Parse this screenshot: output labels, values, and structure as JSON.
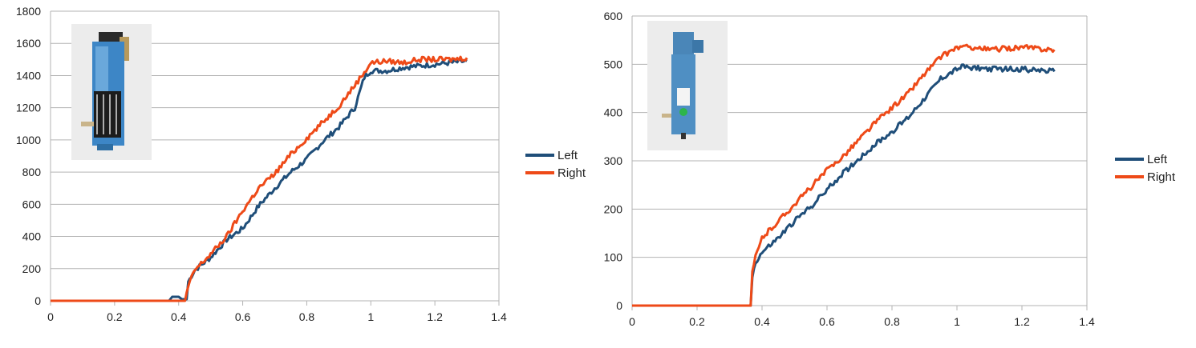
{
  "chart_data": [
    {
      "type": "line",
      "xlim": [
        0,
        1.4
      ],
      "ylim": [
        0,
        1800
      ],
      "x_ticks": [
        "0",
        "0.2",
        "0.4",
        "0.6",
        "0.8",
        "1",
        "1.2",
        "1.4"
      ],
      "y_ticks": [
        "0",
        "200",
        "400",
        "600",
        "800",
        "1000",
        "1200",
        "1400",
        "1600",
        "1800"
      ],
      "grid": true,
      "legend_position": "right",
      "inset_image": "photo of blue gear motor (labeled TM310)",
      "series": [
        {
          "name": "Left",
          "color": "#1f4e79",
          "points": [
            [
              0,
              0
            ],
            [
              0.37,
              0
            ],
            [
              0.38,
              25
            ],
            [
              0.4,
              25
            ],
            [
              0.41,
              10
            ],
            [
              0.425,
              10
            ],
            [
              0.43,
              120
            ],
            [
              0.45,
              190
            ],
            [
              0.5,
              270
            ],
            [
              0.55,
              380
            ],
            [
              0.6,
              450
            ],
            [
              0.65,
              590
            ],
            [
              0.7,
              700
            ],
            [
              0.75,
              800
            ],
            [
              0.8,
              880
            ],
            [
              0.85,
              990
            ],
            [
              0.9,
              1080
            ],
            [
              0.95,
              1200
            ],
            [
              0.98,
              1390
            ],
            [
              1.0,
              1430
            ],
            [
              1.05,
              1430
            ],
            [
              1.1,
              1450
            ],
            [
              1.15,
              1460
            ],
            [
              1.2,
              1470
            ],
            [
              1.25,
              1480
            ],
            [
              1.3,
              1490
            ]
          ]
        },
        {
          "name": "Right",
          "color": "#ee4a18",
          "points": [
            [
              0,
              0
            ],
            [
              0.37,
              0
            ],
            [
              0.42,
              0
            ],
            [
              0.43,
              90
            ],
            [
              0.45,
              190
            ],
            [
              0.5,
              290
            ],
            [
              0.55,
              400
            ],
            [
              0.6,
              560
            ],
            [
              0.65,
              700
            ],
            [
              0.7,
              790
            ],
            [
              0.75,
              910
            ],
            [
              0.8,
              1010
            ],
            [
              0.85,
              1110
            ],
            [
              0.9,
              1210
            ],
            [
              0.95,
              1340
            ],
            [
              0.99,
              1450
            ],
            [
              1.0,
              1480
            ],
            [
              1.05,
              1490
            ],
            [
              1.1,
              1480
            ],
            [
              1.15,
              1500
            ],
            [
              1.2,
              1500
            ],
            [
              1.25,
              1500
            ],
            [
              1.3,
              1510
            ]
          ]
        }
      ]
    },
    {
      "type": "line",
      "xlim": [
        0,
        1.4
      ],
      "ylim": [
        0,
        600
      ],
      "x_ticks": [
        "0",
        "0.2",
        "0.4",
        "0.6",
        "0.8",
        "1",
        "1.2",
        "1.4"
      ],
      "y_ticks": [
        "0",
        "100",
        "200",
        "300",
        "400",
        "500",
        "600"
      ],
      "grid": true,
      "legend_position": "right",
      "inset_image": "photo of blue gear motor with green dot",
      "series": [
        {
          "name": "Left",
          "color": "#1f4e79",
          "points": [
            [
              0,
              0
            ],
            [
              0.365,
              0
            ],
            [
              0.37,
              60
            ],
            [
              0.38,
              90
            ],
            [
              0.4,
              110
            ],
            [
              0.45,
              140
            ],
            [
              0.5,
              175
            ],
            [
              0.55,
              205
            ],
            [
              0.6,
              240
            ],
            [
              0.65,
              275
            ],
            [
              0.7,
              305
            ],
            [
              0.75,
              335
            ],
            [
              0.8,
              360
            ],
            [
              0.85,
              390
            ],
            [
              0.9,
              430
            ],
            [
              0.95,
              470
            ],
            [
              1.0,
              490
            ],
            [
              1.02,
              495
            ],
            [
              1.1,
              490
            ],
            [
              1.2,
              490
            ],
            [
              1.3,
              485
            ]
          ]
        },
        {
          "name": "Right",
          "color": "#ee4a18",
          "points": [
            [
              0,
              0
            ],
            [
              0.365,
              0
            ],
            [
              0.37,
              70
            ],
            [
              0.38,
              100
            ],
            [
              0.4,
              140
            ],
            [
              0.45,
              175
            ],
            [
              0.5,
              210
            ],
            [
              0.55,
              245
            ],
            [
              0.6,
              280
            ],
            [
              0.65,
              310
            ],
            [
              0.7,
              345
            ],
            [
              0.75,
              380
            ],
            [
              0.8,
              410
            ],
            [
              0.85,
              440
            ],
            [
              0.9,
              480
            ],
            [
              0.95,
              515
            ],
            [
              1.0,
              535
            ],
            [
              1.05,
              535
            ],
            [
              1.1,
              530
            ],
            [
              1.2,
              535
            ],
            [
              1.3,
              530
            ]
          ]
        }
      ]
    }
  ]
}
